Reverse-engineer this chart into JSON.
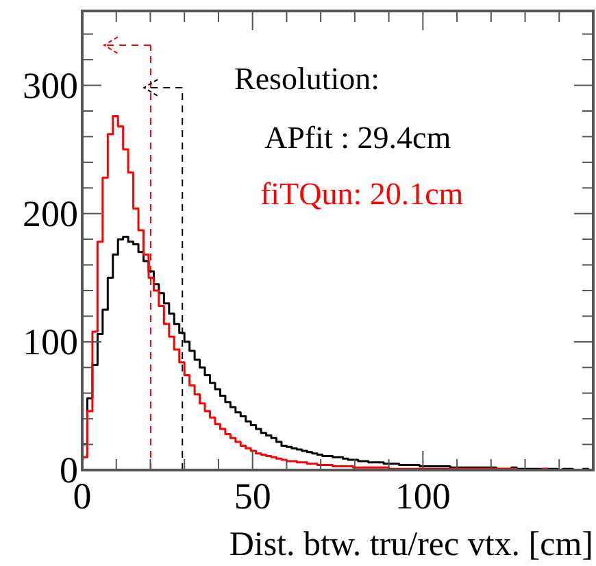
{
  "chart_data": {
    "type": "histogram",
    "xlabel": "Dist. btw. tru/rec vtx. [cm]",
    "legend_title": "Resolution:",
    "legend": "top right",
    "bins": [
      0,
      1.5,
      3,
      4.5,
      6,
      7.5,
      9,
      10.5,
      12,
      13.5,
      15,
      16.5,
      18,
      19.5,
      21,
      22.5,
      24,
      25.5,
      27,
      28.5,
      30,
      31.5,
      33,
      34.5,
      36,
      37.5,
      39,
      40.5,
      42,
      43.5,
      45,
      46.5,
      48,
      49.5,
      51,
      52.5,
      54,
      55.5,
      57,
      58.5,
      60,
      61.5,
      63,
      64.5,
      66,
      67.5,
      69,
      70.5,
      72,
      73.5,
      75,
      76.5,
      78,
      79.5,
      81,
      82.5,
      84,
      85.5,
      87,
      88.5,
      90,
      91.5,
      93,
      94.5,
      96,
      97.5,
      99,
      100.5,
      102,
      103.5,
      105,
      106.5,
      108,
      109.5,
      111,
      112.5,
      114,
      115.5,
      117,
      118.5,
      120,
      121.5,
      123,
      124.5,
      126,
      127.5,
      129,
      130.5,
      132,
      133.5,
      135,
      136.5,
      138,
      139.5,
      141,
      142.5,
      144,
      145.5,
      147,
      148.5,
      150
    ],
    "series": [
      {
        "name": "APfit : 29.4cm",
        "color": "#000000",
        "values": [
          20,
          56,
          82,
          106,
          125,
          150,
          168,
          180,
          182,
          178,
          176,
          170,
          163,
          155,
          145,
          138,
          130,
          122,
          114,
          107,
          100,
          93,
          86,
          80,
          74,
          68,
          63,
          58,
          53,
          49,
          45,
          42,
          38,
          35,
          32,
          29,
          27,
          25,
          22,
          19,
          18,
          17,
          16,
          15,
          14,
          13,
          12,
          11,
          11,
          10,
          10,
          9,
          8,
          8,
          7,
          7,
          6,
          6,
          6,
          5,
          5,
          5,
          4,
          4,
          4,
          4,
          3,
          3,
          3,
          3,
          3,
          3,
          2,
          2,
          2,
          2,
          2,
          2,
          2,
          2,
          2,
          1,
          1,
          1,
          2,
          1,
          1,
          1,
          1,
          1,
          1,
          1,
          1,
          0,
          1,
          1,
          0,
          0,
          1,
          0
        ]
      },
      {
        "name": "fiTQun: 20.1cm",
        "color": "#ff0000",
        "values": [
          10,
          46,
          108,
          178,
          228,
          262,
          276,
          268,
          250,
          232,
          204,
          187,
          168,
          150,
          140,
          128,
          114,
          104,
          94,
          84,
          74,
          66,
          59,
          52,
          46,
          41,
          36,
          32,
          28,
          25,
          22,
          19,
          17,
          15,
          13,
          12,
          11,
          10,
          9,
          8,
          7,
          7,
          6,
          6,
          5,
          5,
          4,
          4,
          4,
          3,
          3,
          3,
          3,
          2,
          2,
          2,
          2,
          2,
          2,
          2,
          1,
          1,
          1,
          1,
          1,
          1,
          1,
          1,
          1,
          1,
          1,
          1,
          1,
          1,
          1,
          1,
          1,
          1,
          1,
          1,
          1,
          1,
          1,
          1,
          1,
          0,
          0,
          0,
          0,
          0,
          1,
          0,
          0,
          0,
          0,
          0,
          0,
          0,
          0,
          0
        ]
      }
    ],
    "xlim": [
      0,
      150
    ],
    "ylim": [
      0,
      358
    ],
    "xticks": [
      0,
      {
        "value": 10,
        "label": null
      },
      {
        "value": 20,
        "label": null
      },
      {
        "value": 30,
        "label": null
      },
      {
        "value": 40,
        "label": null
      },
      50,
      {
        "value": 60,
        "label": null
      },
      {
        "value": 70,
        "label": null
      },
      {
        "value": 80,
        "label": null
      },
      {
        "value": 90,
        "label": null
      },
      100,
      {
        "value": 110,
        "label": null
      },
      {
        "value": 120,
        "label": null
      },
      {
        "value": 130,
        "label": null
      },
      {
        "value": 140,
        "label": null
      }
    ],
    "yticks": [
      0,
      {
        "value": 20,
        "label": null
      },
      {
        "value": 40,
        "label": null
      },
      {
        "value": 60,
        "label": null
      },
      {
        "value": 80,
        "label": null
      },
      100,
      {
        "value": 120,
        "label": null
      },
      {
        "value": 140,
        "label": null
      },
      {
        "value": 160,
        "label": null
      },
      {
        "value": 180,
        "label": null
      },
      200,
      {
        "value": 220,
        "label": null
      },
      {
        "value": 240,
        "label": null
      },
      {
        "value": 260,
        "label": null
      },
      {
        "value": 280,
        "label": null
      },
      300,
      {
        "value": 320,
        "label": null
      },
      {
        "value": 340,
        "label": null
      }
    ],
    "ref_lines": [
      {
        "axis": "x",
        "value": 20.1,
        "color": "#ff0000",
        "line_style": "dashed"
      },
      {
        "axis": "x",
        "value": 29.4,
        "color": "#000000",
        "line_style": "dashed"
      }
    ]
  }
}
